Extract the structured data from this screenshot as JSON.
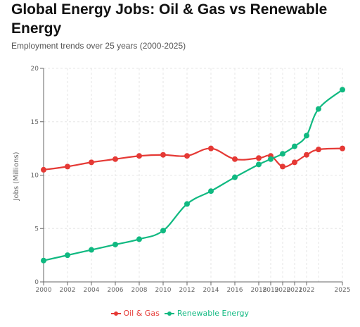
{
  "chart_data": {
    "type": "line",
    "title": "Global Energy Jobs: Oil & Gas vs Renewable Energy",
    "subtitle": "Employment trends over 25 years (2000-2025)",
    "ylabel": "Jobs (Millions)",
    "xlabel": "",
    "x": [
      2000,
      2002,
      2004,
      2006,
      2008,
      2010,
      2012,
      2014,
      2016,
      2018,
      2019,
      2020,
      2021,
      2022,
      2023,
      2025
    ],
    "x_tick_labels": [
      "2000",
      "2002",
      "2004",
      "2006",
      "2008",
      "2010",
      "2012",
      "2014",
      "2016",
      "2018",
      "2019",
      "2020",
      "2021",
      "2022",
      "",
      "2025"
    ],
    "ylim": [
      0,
      20
    ],
    "y_ticks": [
      0,
      5,
      10,
      15,
      20
    ],
    "grid": true,
    "legend_position": "bottom",
    "series": [
      {
        "name": "Oil & Gas",
        "color": "#e53935",
        "values": [
          10.5,
          10.8,
          11.2,
          11.5,
          11.8,
          11.9,
          11.8,
          12.5,
          11.5,
          11.6,
          11.8,
          10.8,
          11.2,
          11.9,
          12.4,
          12.5
        ]
      },
      {
        "name": "Renewable Energy",
        "color": "#10b981",
        "values": [
          2.0,
          2.5,
          3.0,
          3.5,
          4.0,
          4.8,
          7.3,
          8.5,
          9.8,
          11.0,
          11.5,
          12.0,
          12.7,
          13.7,
          16.2,
          18.0
        ]
      }
    ]
  }
}
